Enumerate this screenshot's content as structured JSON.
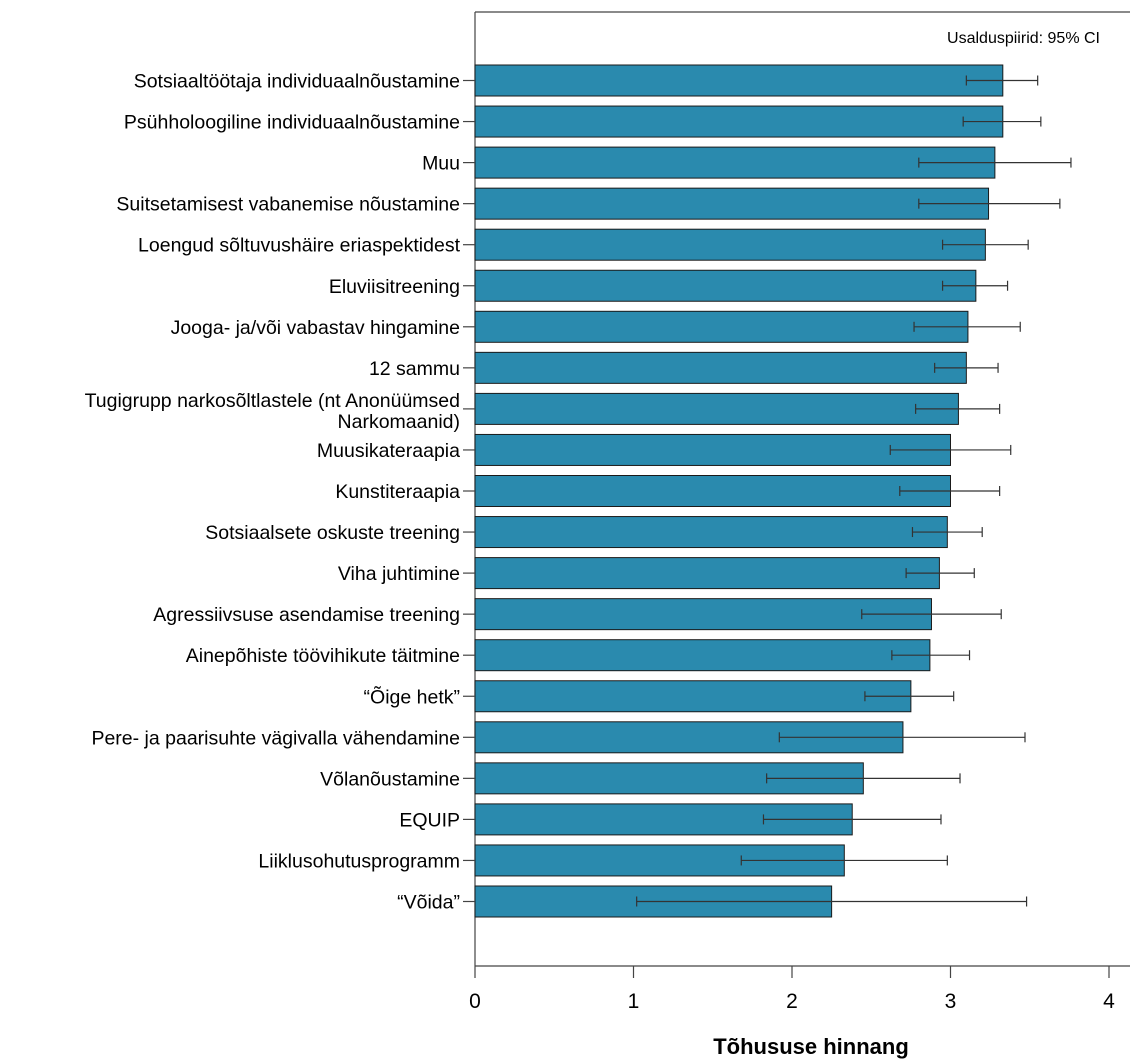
{
  "chart_data": {
    "type": "bar",
    "orientation": "horizontal",
    "categories": [
      "Sotsiaaltöötaja individuaalnõustamine",
      "Psühholoogiline individuaalnõustamine",
      "Muu",
      "Suitsetamisest vabanemise nõustamine",
      "Loengud sõltuvushäire eriaspektidest",
      "Eluviisitreening",
      "Jooga- ja/või vabastav hingamine",
      "12 sammu",
      "Tugigrupp narkosõltlastele (nt Anonüümsed Narkomaanid)",
      "Muusikateraapia",
      "Kunstiteraapia",
      "Sotsiaalsete oskuste treening",
      "Viha juhtimine",
      "Agressiivsuse asendamise treening",
      "Ainepõhiste töövihikute täitmine",
      "“Õige hetk”",
      "Pere- ja paarisuhte vägivalla vähendamine",
      "Võlanõustamine",
      "EQUIP",
      "Liiklusohutusprogramm",
      "“Võida”"
    ],
    "values": [
      3.33,
      3.33,
      3.28,
      3.24,
      3.22,
      3.16,
      3.11,
      3.1,
      3.05,
      3.0,
      3.0,
      2.98,
      2.93,
      2.88,
      2.87,
      2.75,
      2.7,
      2.45,
      2.38,
      2.33,
      2.25
    ],
    "ci_low": [
      3.1,
      3.08,
      2.8,
      2.8,
      2.95,
      2.95,
      2.77,
      2.9,
      2.78,
      2.62,
      2.68,
      2.76,
      2.72,
      2.44,
      2.63,
      2.46,
      1.92,
      1.84,
      1.82,
      1.68,
      1.02
    ],
    "ci_high": [
      3.55,
      3.57,
      3.76,
      3.69,
      3.49,
      3.36,
      3.44,
      3.3,
      3.31,
      3.38,
      3.31,
      3.2,
      3.15,
      3.32,
      3.12,
      3.02,
      3.47,
      3.06,
      2.94,
      2.98,
      3.48
    ],
    "xlabel": "Tõhususe hinnang",
    "ylabel": "",
    "xlim": [
      0,
      4.12
    ],
    "xticks": [
      0,
      1,
      2,
      3,
      4
    ],
    "annotation": "Usalduspiirid: 95% CI",
    "colors": {
      "bar": "#2a8aae",
      "bar_edge": "#1a1a1a",
      "axis": "#444444",
      "error": "#333333"
    },
    "grid": false
  }
}
